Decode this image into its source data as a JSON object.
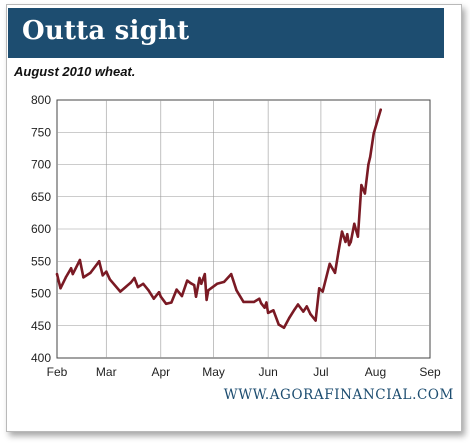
{
  "header": {
    "title": "Outta sight"
  },
  "subtitle": "August 2010 wheat.",
  "footer": {
    "site": "WWW.AGORAFINANCIAL.COM"
  },
  "colors": {
    "banner": "#1d4d70",
    "line": "#7a1a24",
    "grid": "#999999"
  },
  "chart_data": {
    "type": "line",
    "title": "",
    "xlabel": "",
    "ylabel": "",
    "grid": true,
    "ylim": [
      400,
      800
    ],
    "yticks": [
      400,
      450,
      500,
      550,
      600,
      650,
      700,
      750,
      800
    ],
    "xlim": [
      "2010-02-01",
      "2010-09-01"
    ],
    "xticks": [
      "Feb",
      "Mar",
      "Apr",
      "May",
      "Jun",
      "Jul",
      "Aug",
      "Sep"
    ],
    "series": [
      {
        "x": [
          "2010-02-01",
          "2010-02-03",
          "2010-02-06",
          "2010-02-09",
          "2010-02-10",
          "2010-02-14",
          "2010-02-16",
          "2010-02-20",
          "2010-02-25",
          "2010-02-27",
          "2010-03-01",
          "2010-03-03",
          "2010-03-09",
          "2010-03-15",
          "2010-03-17",
          "2010-03-19",
          "2010-03-22",
          "2010-03-25",
          "2010-03-28",
          "2010-03-31",
          "2010-04-01",
          "2010-04-04",
          "2010-04-07",
          "2010-04-10",
          "2010-04-13",
          "2010-04-16",
          "2010-04-18",
          "2010-04-20",
          "2010-04-21",
          "2010-04-23",
          "2010-04-24",
          "2010-04-26",
          "2010-04-27",
          "2010-04-28",
          "2010-05-03",
          "2010-05-07",
          "2010-05-11",
          "2010-05-12",
          "2010-05-14",
          "2010-05-18",
          "2010-05-24",
          "2010-05-27",
          "2010-05-28",
          "2010-05-30",
          "2010-05-31",
          "2010-06-01",
          "2010-06-04",
          "2010-06-07",
          "2010-06-10",
          "2010-06-13",
          "2010-06-16",
          "2010-06-18",
          "2010-06-21",
          "2010-06-23",
          "2010-06-25",
          "2010-06-28",
          "2010-06-30",
          "2010-07-02",
          "2010-07-06",
          "2010-07-09",
          "2010-07-11",
          "2010-07-13",
          "2010-07-15",
          "2010-07-16",
          "2010-07-17",
          "2010-07-18",
          "2010-07-20",
          "2010-07-22",
          "2010-07-24",
          "2010-07-26",
          "2010-07-28",
          "2010-07-29",
          "2010-07-31",
          "2010-08-04"
        ],
        "values": [
          530,
          508,
          525,
          539,
          530,
          552,
          525,
          532,
          550,
          528,
          534,
          522,
          503,
          517,
          524,
          510,
          515,
          505,
          492,
          502,
          495,
          484,
          486,
          506,
          496,
          520,
          516,
          513,
          495,
          524,
          515,
          530,
          490,
          505,
          515,
          518,
          530,
          522,
          505,
          487,
          487,
          492,
          485,
          478,
          486,
          470,
          474,
          452,
          447,
          462,
          475,
          483,
          472,
          480,
          468,
          458,
          508,
          503,
          546,
          532,
          565,
          596,
          580,
          592,
          575,
          580,
          608,
          588,
          668,
          655,
          700,
          712,
          748,
          785
        ]
      }
    ]
  }
}
